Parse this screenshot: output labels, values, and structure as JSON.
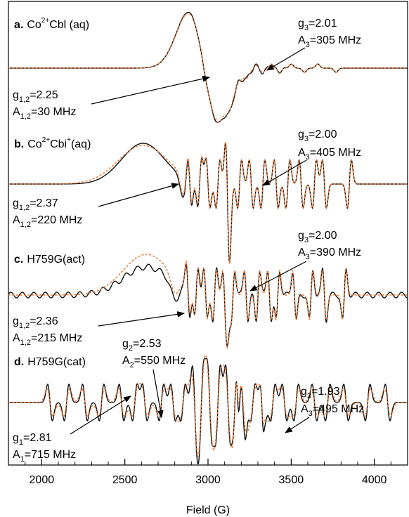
{
  "chart_data": {
    "type": "line",
    "xlabel": "Field (G)",
    "xlim": [
      1800,
      4200
    ],
    "xticks": [
      2000,
      2500,
      3000,
      3500,
      4000
    ],
    "colors": {
      "experiment": "#111111",
      "simulation": "#ee7733"
    },
    "panels": [
      {
        "label_bold": "a.",
        "label_pre": "Co",
        "label_sup": "2+",
        "label_post": "Cbl (aq)",
        "annotations": [
          {
            "lines": [
              {
                "main": "g",
                "sub": "3",
                "rest": "=2.01"
              },
              {
                "main": "A",
                "sub": "3",
                "rest": "=305 MHz"
              }
            ],
            "x": 3350
          },
          {
            "lines": [
              {
                "main": "g",
                "sub": "1,2",
                "rest": "=2.25"
              },
              {
                "main": "A",
                "sub": "1,2",
                "rest": "=30 MHz"
              }
            ],
            "x": 2980
          }
        ]
      },
      {
        "label_bold": "b.",
        "label_pre": "Co",
        "label_sup": "2+",
        "label_post": "Cbi",
        "label_sup2": "+",
        "label_post2": "(aq)",
        "annotations": [
          {
            "lines": [
              {
                "main": "g",
                "sub": "3",
                "rest": "=2.00"
              },
              {
                "main": "A",
                "sub": "3",
                "rest": "=405 MHz"
              }
            ],
            "x": 3330
          },
          {
            "lines": [
              {
                "main": "g",
                "sub": "1,2",
                "rest": "=2.37"
              },
              {
                "main": "A",
                "sub": "1,2",
                "rest": "=220 MHz"
              }
            ],
            "x": 2820
          }
        ]
      },
      {
        "label_bold": "c.",
        "label_pre": "H759G(act)",
        "annotations": [
          {
            "lines": [
              {
                "main": "g",
                "sub": "3",
                "rest": "=2.00"
              },
              {
                "main": "A",
                "sub": "3",
                "rest": "=390 MHz"
              }
            ],
            "x": 3300
          },
          {
            "lines": [
              {
                "main": "g",
                "sub": "1,2",
                "rest": "=2.36"
              },
              {
                "main": "A",
                "sub": "1,2",
                "rest": "=215 MHz"
              }
            ],
            "x": 2830
          }
        ]
      },
      {
        "label_bold": "d.",
        "label_pre": "H759G(cat)",
        "annotations": [
          {
            "lines": [
              {
                "main": "g",
                "sub": "2",
                "rest": "=2.53"
              },
              {
                "main": "A",
                "sub": "2",
                "rest": "=550 MHz"
              }
            ],
            "x": 2650
          },
          {
            "lines": [
              {
                "main": "g",
                "sub": "3",
                "rest": "=1.93"
              },
              {
                "main": "A",
                "sub": "3",
                "rest": "=495 MHz"
              }
            ],
            "x": 3400
          },
          {
            "lines": [
              {
                "main": "g",
                "sub": "1",
                "rest": "=2.81"
              },
              {
                "main": "A",
                "sub": "1",
                "rest": "=715 MHz"
              }
            ],
            "x": 2360
          }
        ]
      }
    ]
  }
}
